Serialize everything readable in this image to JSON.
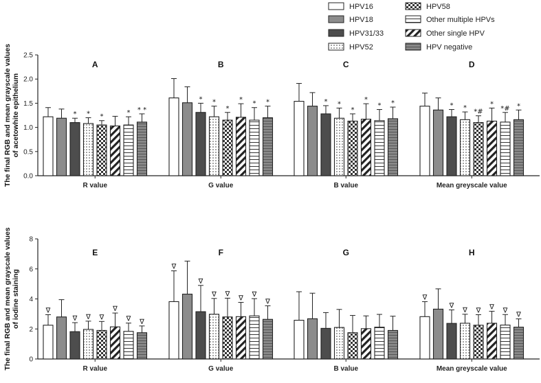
{
  "legend": [
    {
      "name": "HPV16",
      "pattern": "white"
    },
    {
      "name": "HPV18",
      "pattern": "gray"
    },
    {
      "name": "HPV31/33",
      "pattern": "dark"
    },
    {
      "name": "HPV52",
      "pattern": "dots"
    },
    {
      "name": "HPV58",
      "pattern": "checker"
    },
    {
      "name": "Other multiple HPVs",
      "pattern": "hlines"
    },
    {
      "name": "Other single HPV",
      "pattern": "diag"
    },
    {
      "name": "HPV negative",
      "pattern": "darkgrid"
    }
  ],
  "colors": {
    "bar_edge": "#222222",
    "gray": "#8c8c8c",
    "dark": "#4d4d4d",
    "darkgrid": "#7a7a7a"
  },
  "chart_data": [
    {
      "type": "bar",
      "ylabel_lines": [
        "The final RGB and mean grayscale values",
        "of acetowhite epithelium"
      ],
      "ylim": [
        0,
        2.5
      ],
      "yticks": [
        "0.0",
        "0.5",
        "1.0",
        "1.5",
        "2.0",
        "2.5"
      ],
      "groups": [
        {
          "title": "A",
          "label": "R value",
          "series_order": [
            "HPV16",
            "HPV18",
            "HPV31/33",
            "HPV52",
            "HPV58",
            "Other single HPV",
            "Other multiple HPVs",
            "HPV negative"
          ],
          "values": [
            1.22,
            1.19,
            1.1,
            1.08,
            1.05,
            1.03,
            1.05,
            1.11
          ],
          "errors": [
            0.19,
            0.19,
            0.09,
            0.12,
            0.09,
            0.2,
            0.17,
            0.17
          ],
          "marks": [
            "",
            "",
            "*",
            "*",
            "*",
            "",
            "*",
            "* *"
          ]
        },
        {
          "title": "B",
          "label": "G value",
          "series_order": [
            "HPV16",
            "HPV18",
            "HPV31/33",
            "HPV52",
            "HPV58",
            "Other single HPV",
            "Other multiple HPVs",
            "HPV negative"
          ],
          "values": [
            1.61,
            1.51,
            1.31,
            1.22,
            1.15,
            1.21,
            1.15,
            1.2
          ],
          "errors": [
            0.4,
            0.33,
            0.19,
            0.22,
            0.16,
            0.28,
            0.26,
            0.24
          ],
          "marks": [
            "",
            "",
            "*",
            "*",
            "*",
            "*",
            "*",
            "*"
          ]
        },
        {
          "title": "C",
          "label": "B value",
          "series_order": [
            "HPV16",
            "HPV18",
            "HPV31/33",
            "HPV52",
            "HPV58",
            "Other single HPV",
            "Other multiple HPVs",
            "HPV negative"
          ],
          "values": [
            1.54,
            1.44,
            1.28,
            1.19,
            1.13,
            1.17,
            1.14,
            1.18
          ],
          "errors": [
            0.37,
            0.28,
            0.17,
            0.21,
            0.15,
            0.32,
            0.23,
            0.24
          ],
          "marks": [
            "",
            "",
            "*",
            "*",
            "*",
            "*",
            "*",
            "*"
          ]
        },
        {
          "title": "D",
          "label": "Mean greyscale value",
          "series_order": [
            "HPV16",
            "HPV18",
            "HPV31/33",
            "HPV52",
            "HPV58",
            "Other single HPV",
            "Other multiple HPVs",
            "HPV negative"
          ],
          "values": [
            1.44,
            1.36,
            1.22,
            1.16,
            1.1,
            1.13,
            1.11,
            1.16
          ],
          "errors": [
            0.27,
            0.25,
            0.15,
            0.16,
            0.14,
            0.27,
            0.2,
            0.2
          ],
          "marks": [
            "",
            "",
            "*",
            "*",
            "*#",
            "*",
            "*#",
            "*"
          ]
        }
      ]
    },
    {
      "type": "bar",
      "ylabel_lines": [
        "The final RGB and mean grayscale values",
        "of iodine staining"
      ],
      "ylim": [
        0,
        8
      ],
      "yticks": [
        "0",
        "2",
        "4",
        "6",
        "8"
      ],
      "groups": [
        {
          "title": "E",
          "label": "R value",
          "series_order": [
            "HPV16",
            "HPV18",
            "HPV31/33",
            "HPV52",
            "HPV58",
            "Other single HPV",
            "Other multiple HPVs",
            "HPV negative"
          ],
          "values": [
            2.25,
            2.8,
            1.82,
            1.97,
            1.9,
            2.14,
            1.84,
            1.75
          ],
          "errors": [
            0.7,
            1.15,
            0.6,
            0.55,
            0.6,
            0.92,
            0.55,
            0.45
          ],
          "marks": [
            "∇",
            "",
            "∇",
            "∇",
            "∇",
            "∇",
            "∇",
            "∇"
          ]
        },
        {
          "title": "F",
          "label": "G value",
          "series_order": [
            "HPV16",
            "HPV18",
            "HPV31/33",
            "HPV52",
            "HPV58",
            "Other single HPV",
            "Other multiple HPVs",
            "HPV negative"
          ],
          "values": [
            3.82,
            4.32,
            3.15,
            2.98,
            2.8,
            2.82,
            2.87,
            2.64
          ],
          "errors": [
            2.05,
            2.2,
            1.75,
            1.05,
            1.25,
            0.95,
            1.15,
            0.9
          ],
          "marks": [
            "∇",
            "",
            "∇",
            "∇",
            "∇",
            "∇",
            "∇",
            "∇"
          ]
        },
        {
          "title": "G",
          "label": "B value",
          "series_order": [
            "HPV16",
            "HPV18",
            "HPV31/33",
            "HPV52",
            "HPV58",
            "Other single HPV",
            "Other multiple HPVs",
            "HPV negative"
          ],
          "values": [
            2.58,
            2.68,
            2.04,
            2.1,
            1.75,
            2.02,
            2.12,
            1.9
          ],
          "errors": [
            1.9,
            1.7,
            1.05,
            1.2,
            1.15,
            0.85,
            0.85,
            0.95
          ],
          "marks": [
            "",
            "",
            "",
            "",
            "",
            "",
            "",
            ""
          ]
        },
        {
          "title": "H",
          "label": "Mean greyscale value",
          "series_order": [
            "HPV16",
            "HPV18",
            "HPV31/33",
            "HPV52",
            "HPV58",
            "Other single HPV",
            "Other multiple HPVs",
            "HPV negative"
          ],
          "values": [
            2.82,
            3.32,
            2.37,
            2.38,
            2.25,
            2.38,
            2.26,
            2.12
          ],
          "errors": [
            1.0,
            1.35,
            0.9,
            0.6,
            0.7,
            0.8,
            0.7,
            0.55
          ],
          "marks": [
            "∇",
            "",
            "∇",
            "∇",
            "∇",
            "∇",
            "∇",
            "∇"
          ]
        }
      ]
    }
  ]
}
